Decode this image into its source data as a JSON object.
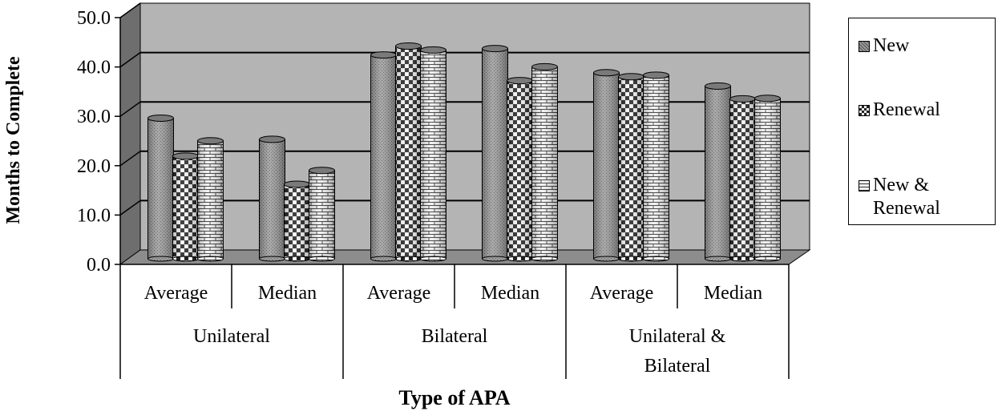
{
  "chart_data": {
    "type": "bar",
    "style": "3d-cylinder",
    "title": "",
    "xlabel": "Type of APA",
    "ylabel": "Months to Complete",
    "ylim": [
      0,
      50
    ],
    "yticks": [
      "0.0",
      "10.0",
      "20.0",
      "30.0",
      "40.0",
      "50.0"
    ],
    "grid": true,
    "legend_position": "right",
    "groups": [
      {
        "label": "Unilateral",
        "label_lines": [
          "Unilateral"
        ],
        "categories": [
          "Average",
          "Median"
        ]
      },
      {
        "label": "Bilateral",
        "label_lines": [
          "Bilateral"
        ],
        "categories": [
          "Average",
          "Median"
        ]
      },
      {
        "label": "Unilateral & Bilateral",
        "label_lines": [
          "Unilateral &",
          "Bilateral"
        ],
        "categories": [
          "Average",
          "Median"
        ]
      }
    ],
    "series": [
      {
        "name": "New",
        "legend_lines": [
          "New"
        ],
        "values": [
          28.5,
          24.2,
          41.3,
          42.6,
          37.7,
          35.0
        ]
      },
      {
        "name": "Renewal",
        "legend_lines": [
          "Renewal"
        ],
        "values": [
          20.8,
          15.1,
          43.1,
          36.1,
          36.9,
          32.4
        ]
      },
      {
        "name": "New & Renewal",
        "legend_lines": [
          "New &",
          "Renewal"
        ],
        "values": [
          23.9,
          17.9,
          42.3,
          38.9,
          37.2,
          32.5
        ]
      }
    ],
    "colors": {
      "wall": "#b4b4b4",
      "floor": "#8c8c8c",
      "side": "#6e6e6e"
    }
  }
}
